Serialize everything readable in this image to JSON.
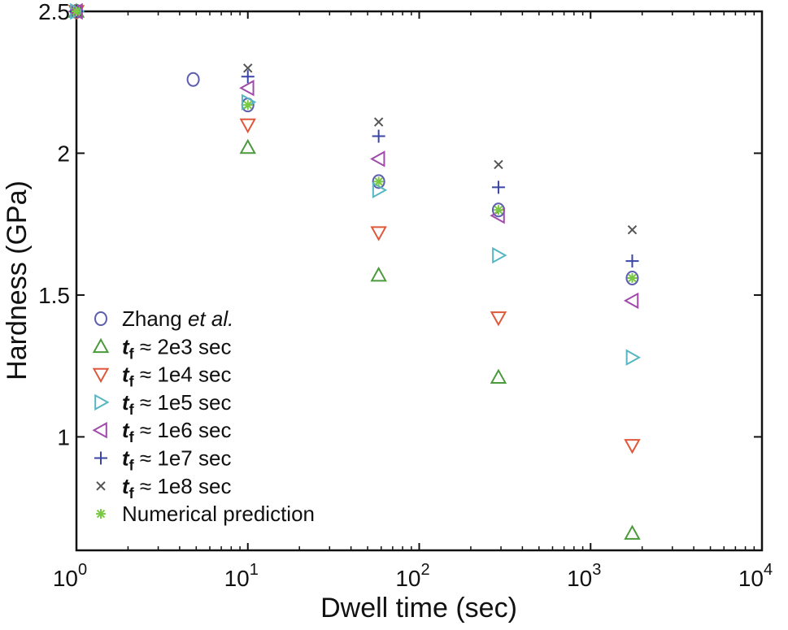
{
  "chart_data": {
    "type": "scatter",
    "xscale": "log",
    "xlim": [
      1,
      10000
    ],
    "ylim": [
      0.6,
      2.5
    ],
    "xlabel": "Dwell time (sec)",
    "ylabel": "Hardness (GPa)",
    "xticks": [
      {
        "value": 1,
        "base": "10",
        "exp": "0"
      },
      {
        "value": 10,
        "base": "10",
        "exp": "1"
      },
      {
        "value": 100,
        "base": "10",
        "exp": "2"
      },
      {
        "value": 1000,
        "base": "10",
        "exp": "3"
      },
      {
        "value": 10000,
        "base": "10",
        "exp": "4"
      }
    ],
    "yticks": [
      {
        "value": 1.0,
        "label": "1"
      },
      {
        "value": 1.5,
        "label": "1.5"
      },
      {
        "value": 2.0,
        "label": "2"
      },
      {
        "value": 2.5,
        "label": "2.5"
      }
    ],
    "series": [
      {
        "key": "zhang",
        "name": "Zhang et al.",
        "prefix": "Zhang ",
        "italic": "et al.",
        "suffix": "",
        "marker": "circle",
        "color": "#5b5fae",
        "points": [
          [
            1,
            2.5
          ],
          [
            4.8,
            2.26
          ],
          [
            10,
            2.17
          ],
          [
            58,
            1.9
          ],
          [
            290,
            1.8
          ],
          [
            1750,
            1.56
          ]
        ]
      },
      {
        "key": "tf_2e3",
        "name": "t_f ≈ 2e3 sec",
        "tvar": "t",
        "tsub": "f",
        "label": " ≈ 2e3 sec",
        "marker": "triangle-up",
        "color": "#4a9a3c",
        "points": [
          [
            1,
            2.5
          ],
          [
            10,
            2.02
          ],
          [
            58,
            1.57
          ],
          [
            290,
            1.21
          ],
          [
            1750,
            0.66
          ]
        ]
      },
      {
        "key": "tf_1e4",
        "name": "t_f ≈ 1e4 sec",
        "tvar": "t",
        "tsub": "f",
        "label": " ≈ 1e4 sec",
        "marker": "triangle-down",
        "color": "#e0583a",
        "points": [
          [
            1,
            2.5
          ],
          [
            10,
            2.1
          ],
          [
            58,
            1.72
          ],
          [
            290,
            1.42
          ],
          [
            1750,
            0.97
          ]
        ]
      },
      {
        "key": "tf_1e5",
        "name": "t_f ≈ 1e5 sec",
        "tvar": "t",
        "tsub": "f",
        "label": " ≈ 1e5 sec",
        "marker": "triangle-right",
        "color": "#56b6c2",
        "points": [
          [
            1,
            2.5
          ],
          [
            10,
            2.18
          ],
          [
            58,
            1.87
          ],
          [
            290,
            1.64
          ],
          [
            1750,
            1.28
          ]
        ]
      },
      {
        "key": "tf_1e6",
        "name": "t_f ≈ 1e6 sec",
        "tvar": "t",
        "tsub": "f",
        "label": " ≈ 1e6 sec",
        "marker": "triangle-left",
        "color": "#a04aaa",
        "points": [
          [
            1,
            2.5
          ],
          [
            10,
            2.23
          ],
          [
            58,
            1.98
          ],
          [
            290,
            1.78
          ],
          [
            1750,
            1.48
          ]
        ]
      },
      {
        "key": "tf_1e7",
        "name": "t_f ≈ 1e7 sec",
        "tvar": "t",
        "tsub": "f",
        "label": " ≈ 1e7 sec",
        "marker": "plus",
        "color": "#3a45a8",
        "points": [
          [
            1,
            2.5
          ],
          [
            10,
            2.27
          ],
          [
            58,
            2.06
          ],
          [
            290,
            1.88
          ],
          [
            1750,
            1.62
          ]
        ]
      },
      {
        "key": "tf_1e8",
        "name": "t_f ≈ 1e8 sec",
        "tvar": "t",
        "tsub": "f",
        "label": " ≈ 1e8 sec",
        "marker": "x",
        "color": "#555555",
        "points": [
          [
            1,
            2.5
          ],
          [
            10,
            2.3
          ],
          [
            58,
            2.11
          ],
          [
            290,
            1.96
          ],
          [
            1750,
            1.73
          ]
        ]
      },
      {
        "key": "numerical",
        "name": "Numerical prediction",
        "prefix": "Numerical prediction",
        "italic": "",
        "suffix": "",
        "marker": "asterisk",
        "color": "#7ac943",
        "points": [
          [
            1,
            2.5
          ],
          [
            10,
            2.17
          ],
          [
            58,
            1.9
          ],
          [
            290,
            1.8
          ],
          [
            1750,
            1.56
          ]
        ]
      }
    ],
    "legend_position": "lower-left"
  }
}
